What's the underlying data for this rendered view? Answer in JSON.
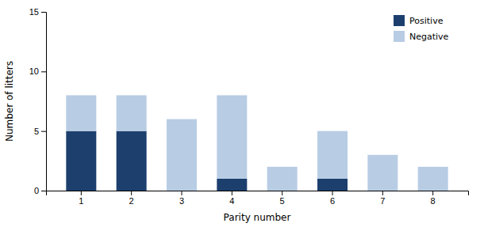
{
  "chart_data": {
    "type": "bar",
    "stacked": true,
    "categories": [
      1,
      2,
      3,
      4,
      5,
      6,
      7,
      8
    ],
    "series": [
      {
        "name": "Positive",
        "color": "#1c3f6e",
        "values": [
          5,
          5,
          0,
          1,
          0,
          1,
          0,
          0
        ]
      },
      {
        "name": "Negative",
        "color": "#b8cce4",
        "values": [
          3,
          3,
          6,
          7,
          2,
          4,
          3,
          2
        ]
      }
    ],
    "xlabel": "Parity number",
    "ylabel": "Number of litters",
    "ylim": [
      0,
      15
    ],
    "yticks": [
      0,
      5,
      10,
      15
    ],
    "grid": false,
    "legend": "upper right"
  }
}
